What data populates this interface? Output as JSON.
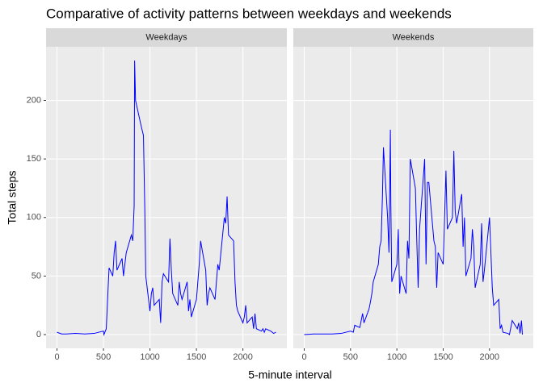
{
  "chart_data": {
    "type": "line",
    "facet": true,
    "title": "Comparative of activity patterns between weekdays and weekends",
    "x_label": "5-minute interval",
    "y_label": "Total steps",
    "xlim": [
      -117.75,
      2472.75
    ],
    "xticks": [
      0,
      500,
      1000,
      1500,
      2000
    ],
    "ylim": [
      -11.7,
      245.8
    ],
    "yticks": [
      0,
      50,
      100,
      150,
      200
    ],
    "grid": true,
    "series": [
      {
        "name": "Weekdays",
        "color": "#0000ff",
        "x": [
          0,
          50,
          100,
          200,
          300,
          400,
          500,
          505,
          530,
          550,
          560,
          600,
          615,
          630,
          645,
          700,
          715,
          730,
          745,
          800,
          815,
          830,
          835,
          845,
          900,
          915,
          930,
          945,
          955,
          1000,
          1015,
          1030,
          1045,
          1100,
          1115,
          1130,
          1145,
          1200,
          1215,
          1230,
          1245,
          1300,
          1315,
          1330,
          1345,
          1400,
          1415,
          1430,
          1445,
          1500,
          1515,
          1530,
          1545,
          1600,
          1615,
          1630,
          1645,
          1700,
          1715,
          1730,
          1745,
          1800,
          1815,
          1830,
          1845,
          1900,
          1915,
          1930,
          1945,
          2000,
          2015,
          2030,
          2045,
          2100,
          2115,
          2130,
          2145,
          2200,
          2215,
          2230,
          2245,
          2300,
          2330,
          2355
        ],
        "values": [
          2,
          0.5,
          0.5,
          1,
          0.5,
          1,
          3,
          0,
          5,
          40,
          57,
          50,
          70,
          80,
          55,
          65,
          50,
          60,
          70,
          85,
          80,
          110,
          234,
          200,
          180,
          175,
          170,
          105,
          50,
          20,
          35,
          40,
          25,
          30,
          10,
          45,
          52,
          45,
          82,
          55,
          35,
          25,
          45,
          35,
          30,
          45,
          20,
          30,
          15,
          30,
          45,
          60,
          80,
          55,
          25,
          35,
          40,
          30,
          45,
          60,
          55,
          100,
          95,
          118,
          85,
          80,
          45,
          25,
          20,
          10,
          15,
          25,
          10,
          15,
          5,
          18,
          5,
          3,
          5,
          2,
          5,
          3,
          1,
          2
        ]
      },
      {
        "name": "Weekends",
        "color": "#0000ff",
        "x": [
          0,
          100,
          300,
          400,
          500,
          530,
          545,
          600,
          615,
          630,
          645,
          700,
          715,
          730,
          745,
          800,
          815,
          830,
          845,
          855,
          900,
          915,
          930,
          935,
          945,
          1000,
          1015,
          1030,
          1045,
          1100,
          1115,
          1130,
          1145,
          1200,
          1215,
          1230,
          1245,
          1300,
          1315,
          1330,
          1345,
          1400,
          1415,
          1430,
          1445,
          1500,
          1515,
          1530,
          1545,
          1600,
          1615,
          1630,
          1645,
          1700,
          1715,
          1730,
          1745,
          1800,
          1815,
          1830,
          1845,
          1900,
          1915,
          1930,
          1945,
          2000,
          2015,
          2030,
          2045,
          2100,
          2115,
          2130,
          2145,
          2200,
          2215,
          2245,
          2300,
          2315,
          2330,
          2345,
          2355
        ],
        "values": [
          0,
          0.5,
          0.5,
          1,
          3,
          2,
          8,
          6,
          12,
          18,
          10,
          22,
          28,
          35,
          45,
          60,
          75,
          80,
          120,
          160,
          100,
          70,
          175,
          110,
          45,
          60,
          90,
          35,
          50,
          35,
          80,
          65,
          150,
          125,
          80,
          40,
          90,
          150,
          60,
          130,
          130,
          80,
          75,
          40,
          70,
          60,
          100,
          140,
          90,
          100,
          157,
          105,
          95,
          120,
          75,
          100,
          50,
          65,
          90,
          75,
          40,
          60,
          95,
          45,
          55,
          100,
          70,
          40,
          25,
          30,
          5,
          8,
          2,
          1,
          0,
          12,
          5,
          10,
          1,
          12,
          0
        ]
      }
    ]
  }
}
